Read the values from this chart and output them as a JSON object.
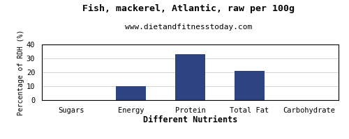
{
  "title": "Fish, mackerel, Atlantic, raw per 100g",
  "subtitle": "www.dietandfitnesstoday.com",
  "xlabel": "Different Nutrients",
  "ylabel": "Percentage of RDH (%)",
  "categories": [
    "Sugars",
    "Energy",
    "Protein",
    "Total Fat",
    "Carbohydrate"
  ],
  "values": [
    0,
    10,
    33,
    21,
    0
  ],
  "bar_color": "#2e4482",
  "ylim": [
    0,
    40
  ],
  "yticks": [
    0,
    10,
    20,
    30,
    40
  ],
  "background_color": "#ffffff",
  "plot_bg_color": "#ffffff",
  "title_fontsize": 9.5,
  "subtitle_fontsize": 8,
  "xlabel_fontsize": 8.5,
  "ylabel_fontsize": 7,
  "tick_fontsize": 7.5
}
